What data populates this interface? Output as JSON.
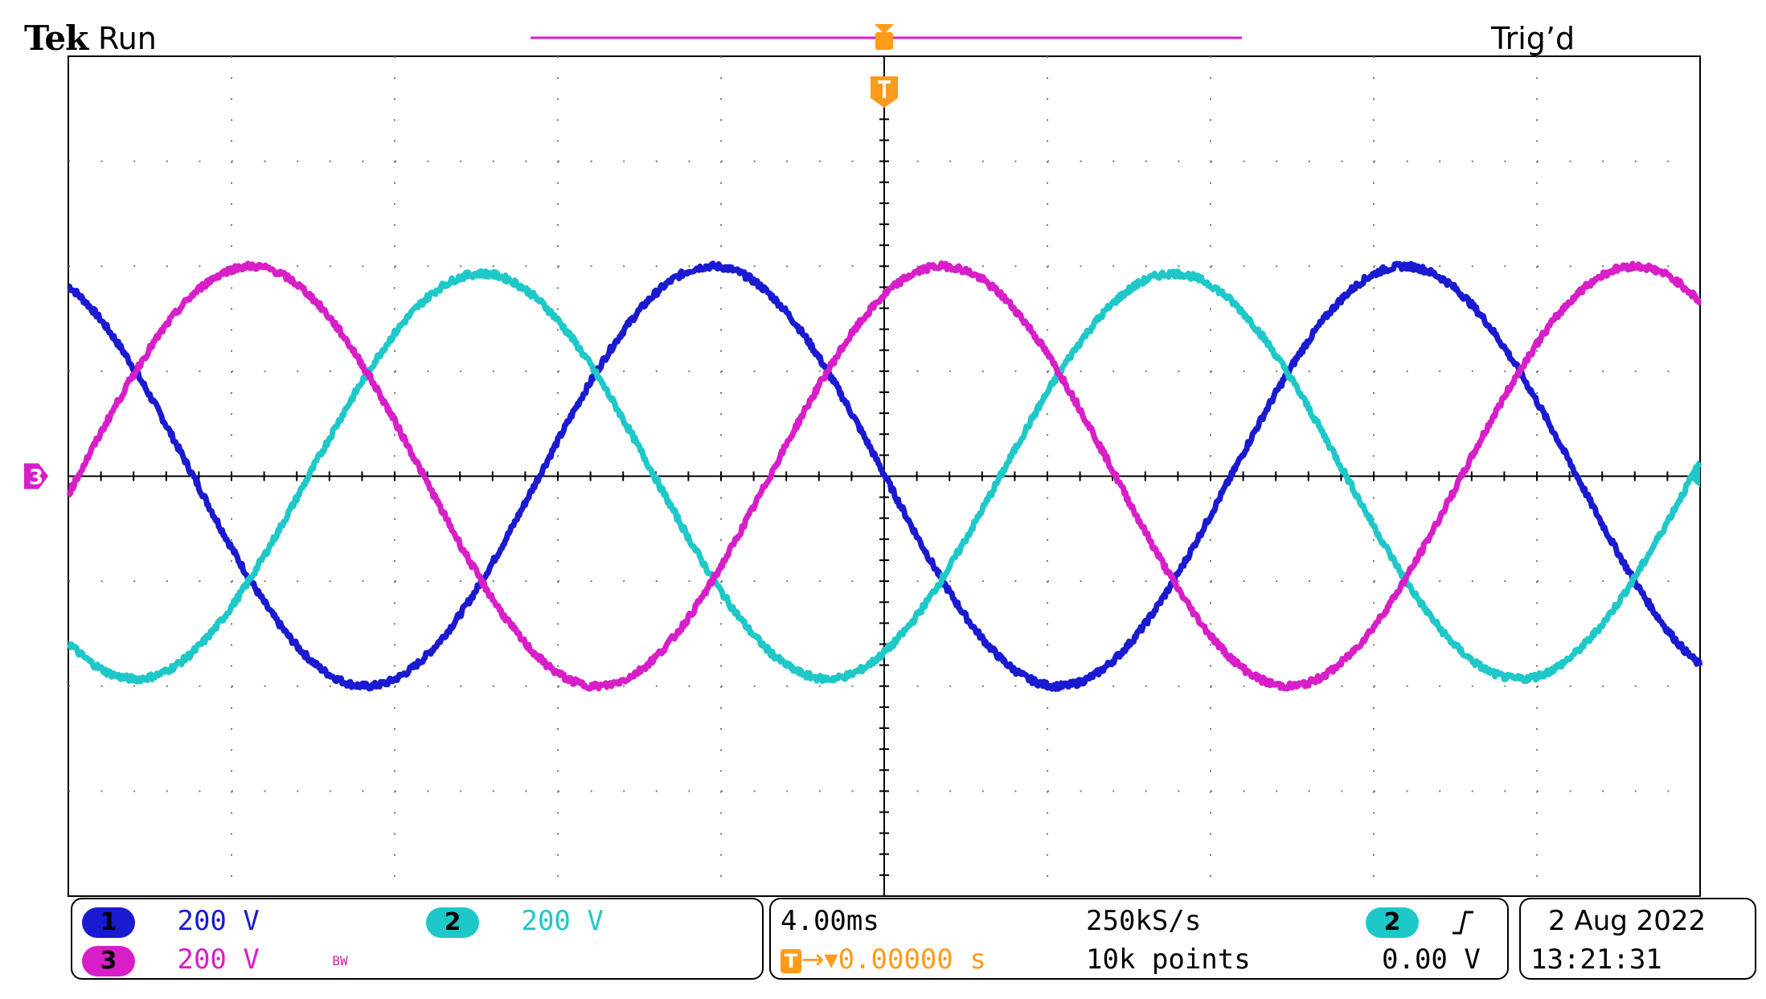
{
  "header": {
    "brand": "Tek",
    "run_state": "Run",
    "trigger_state": "Trig’d"
  },
  "channels": [
    {
      "id": "1",
      "scale": "200 V",
      "color": "#1a1ad0"
    },
    {
      "id": "2",
      "scale": "200 V",
      "color": "#1ec8c8"
    },
    {
      "id": "3",
      "scale": "200 V",
      "color": "#d81ec8",
      "bw_limit": "BW"
    }
  ],
  "ground_marker": "3",
  "timebase": {
    "per_div": "4.00ms",
    "sample_rate": "250kS/s",
    "record_length": "10k points",
    "trigger_position": "0.00000 s",
    "trigger_source": "2",
    "trigger_slope": "rising",
    "trigger_level": "0.00 V"
  },
  "date": "2 Aug 2022",
  "time": "13:21:31",
  "accent_trigger_color": "#ff9a1a",
  "chart_data": {
    "type": "line",
    "xlabel": "",
    "ylabel": "",
    "x_unit_per_div": "4.00ms",
    "y_unit_per_div": "200 V",
    "xlim_div": [
      0,
      10
    ],
    "ylim_div": [
      -4,
      4
    ],
    "grid": true,
    "series": [
      {
        "channel": "1",
        "color": "#1a1ad0",
        "amplitude_div": 2.0,
        "period_div": 4.24,
        "phase_deg": 115
      },
      {
        "channel": "2",
        "color": "#1ec8c8",
        "amplitude_div": 1.93,
        "period_div": 4.24,
        "phase_deg": -125
      },
      {
        "channel": "3",
        "color": "#d81ec8",
        "amplitude_div": 2.0,
        "period_div": 4.24,
        "phase_deg": -5
      }
    ]
  }
}
